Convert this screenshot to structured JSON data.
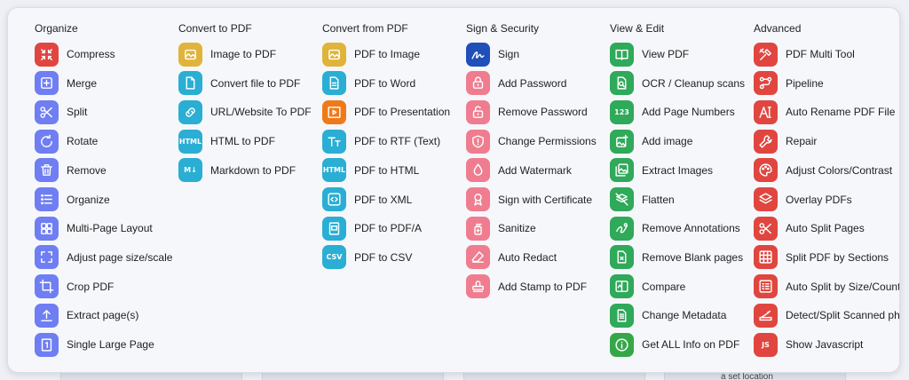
{
  "background": {
    "hint_text": "a set location"
  },
  "columns": [
    {
      "title": "Organize",
      "items": [
        {
          "label": "Compress",
          "icon": "compress-icon",
          "color": "#e0463f"
        },
        {
          "label": "Merge",
          "icon": "merge-icon",
          "color": "#6f7ef2"
        },
        {
          "label": "Split",
          "icon": "scissors-icon",
          "color": "#6f7ef2"
        },
        {
          "label": "Rotate",
          "icon": "rotate-icon",
          "color": "#6f7ef2"
        },
        {
          "label": "Remove",
          "icon": "trash-icon",
          "color": "#6f7ef2"
        },
        {
          "label": "Organize",
          "icon": "list-icon",
          "color": "#6f7ef2"
        },
        {
          "label": "Multi-Page Layout",
          "icon": "grid-icon",
          "color": "#6f7ef2"
        },
        {
          "label": "Adjust page size/scale",
          "icon": "resize-icon",
          "color": "#6f7ef2"
        },
        {
          "label": "Crop PDF",
          "icon": "crop-icon",
          "color": "#6f7ef2"
        },
        {
          "label": "Extract page(s)",
          "icon": "upload-icon",
          "color": "#6f7ef2"
        },
        {
          "label": "Single Large Page",
          "icon": "page-one-icon",
          "color": "#6f7ef2"
        }
      ]
    },
    {
      "title": "Convert to PDF",
      "items": [
        {
          "label": "Image to PDF",
          "icon": "image-icon",
          "color": "#e0b33a"
        },
        {
          "label": "Convert file to PDF",
          "icon": "file-icon",
          "color": "#2aaed3"
        },
        {
          "label": "URL/Website To PDF",
          "icon": "link-icon",
          "color": "#2aaed3"
        },
        {
          "label": "HTML to PDF",
          "icon": "html-icon",
          "color": "#2aaed3"
        },
        {
          "label": "Markdown to PDF",
          "icon": "markdown-icon",
          "color": "#2aaed3"
        }
      ]
    },
    {
      "title": "Convert from PDF",
      "items": [
        {
          "label": "PDF to Image",
          "icon": "image-icon",
          "color": "#e0b33a"
        },
        {
          "label": "PDF to Word",
          "icon": "document-icon",
          "color": "#2aaed3"
        },
        {
          "label": "PDF to Presentation",
          "icon": "presentation-icon",
          "color": "#ef7a1a"
        },
        {
          "label": "PDF to RTF (Text)",
          "icon": "text-format-icon",
          "color": "#2aaed3"
        },
        {
          "label": "PDF to HTML",
          "icon": "html-icon",
          "color": "#2aaed3"
        },
        {
          "label": "PDF to XML",
          "icon": "code-icon",
          "color": "#2aaed3"
        },
        {
          "label": "PDF to PDF/A",
          "icon": "pdfa-icon",
          "color": "#2aaed3"
        },
        {
          "label": "PDF to CSV",
          "icon": "csv-icon",
          "color": "#2aaed3"
        }
      ]
    },
    {
      "title": "Sign & Security",
      "items": [
        {
          "label": "Sign",
          "icon": "signature-icon",
          "color": "#1f4fb8"
        },
        {
          "label": "Add Password",
          "icon": "lock-icon",
          "color": "#ef7d8f"
        },
        {
          "label": "Remove Password",
          "icon": "unlock-icon",
          "color": "#ef7d8f"
        },
        {
          "label": "Change Permissions",
          "icon": "shield-icon",
          "color": "#ef7d8f"
        },
        {
          "label": "Add Watermark",
          "icon": "droplet-icon",
          "color": "#ef7d8f"
        },
        {
          "label": "Sign with Certificate",
          "icon": "certificate-icon",
          "color": "#ef7d8f"
        },
        {
          "label": "Sanitize",
          "icon": "sanitize-icon",
          "color": "#ef7d8f"
        },
        {
          "label": "Auto Redact",
          "icon": "eraser-icon",
          "color": "#ef7d8f"
        },
        {
          "label": "Add Stamp to PDF",
          "icon": "stamp-icon",
          "color": "#ef7d8f"
        }
      ]
    },
    {
      "title": "View & Edit",
      "items": [
        {
          "label": "View PDF",
          "icon": "book-icon",
          "color": "#2fa95a"
        },
        {
          "label": "OCR / Cleanup scans",
          "icon": "ocr-icon",
          "color": "#2fa95a"
        },
        {
          "label": "Add Page Numbers",
          "icon": "numbers-icon",
          "color": "#2fa95a"
        },
        {
          "label": "Add image",
          "icon": "add-image-icon",
          "color": "#2fa95a"
        },
        {
          "label": "Extract Images",
          "icon": "images-icon",
          "color": "#2fa95a"
        },
        {
          "label": "Flatten",
          "icon": "flatten-icon",
          "color": "#2fa95a"
        },
        {
          "label": "Remove Annotations",
          "icon": "annotation-icon",
          "color": "#2fa95a"
        },
        {
          "label": "Remove Blank pages",
          "icon": "blank-page-icon",
          "color": "#2fa95a"
        },
        {
          "label": "Compare",
          "icon": "compare-icon",
          "color": "#2fa95a"
        },
        {
          "label": "Change Metadata",
          "icon": "metadata-icon",
          "color": "#2fa95a"
        },
        {
          "label": "Get ALL Info on PDF",
          "icon": "info-icon",
          "color": "#36a748"
        }
      ]
    },
    {
      "title": "Advanced",
      "items": [
        {
          "label": "PDF Multi Tool",
          "icon": "tools-icon",
          "color": "#e0463f"
        },
        {
          "label": "Pipeline",
          "icon": "pipeline-icon",
          "color": "#e0463f"
        },
        {
          "label": "Auto Rename PDF File",
          "icon": "rename-icon",
          "color": "#e0463f"
        },
        {
          "label": "Repair",
          "icon": "wrench-icon",
          "color": "#e0463f"
        },
        {
          "label": "Adjust Colors/Contrast",
          "icon": "palette-icon",
          "color": "#e0463f"
        },
        {
          "label": "Overlay PDFs",
          "icon": "layers-icon",
          "color": "#e0463f"
        },
        {
          "label": "Auto Split Pages",
          "icon": "scissors-icon",
          "color": "#e0463f"
        },
        {
          "label": "Split PDF by Sections",
          "icon": "table-icon",
          "color": "#e0463f"
        },
        {
          "label": "Auto Split by Size/Count",
          "icon": "split-list-icon",
          "color": "#e0463f"
        },
        {
          "label": "Detect/Split Scanned photos",
          "icon": "scanner-icon",
          "color": "#e0463f"
        },
        {
          "label": "Show Javascript",
          "icon": "javascript-icon",
          "color": "#e0463f"
        }
      ]
    }
  ]
}
